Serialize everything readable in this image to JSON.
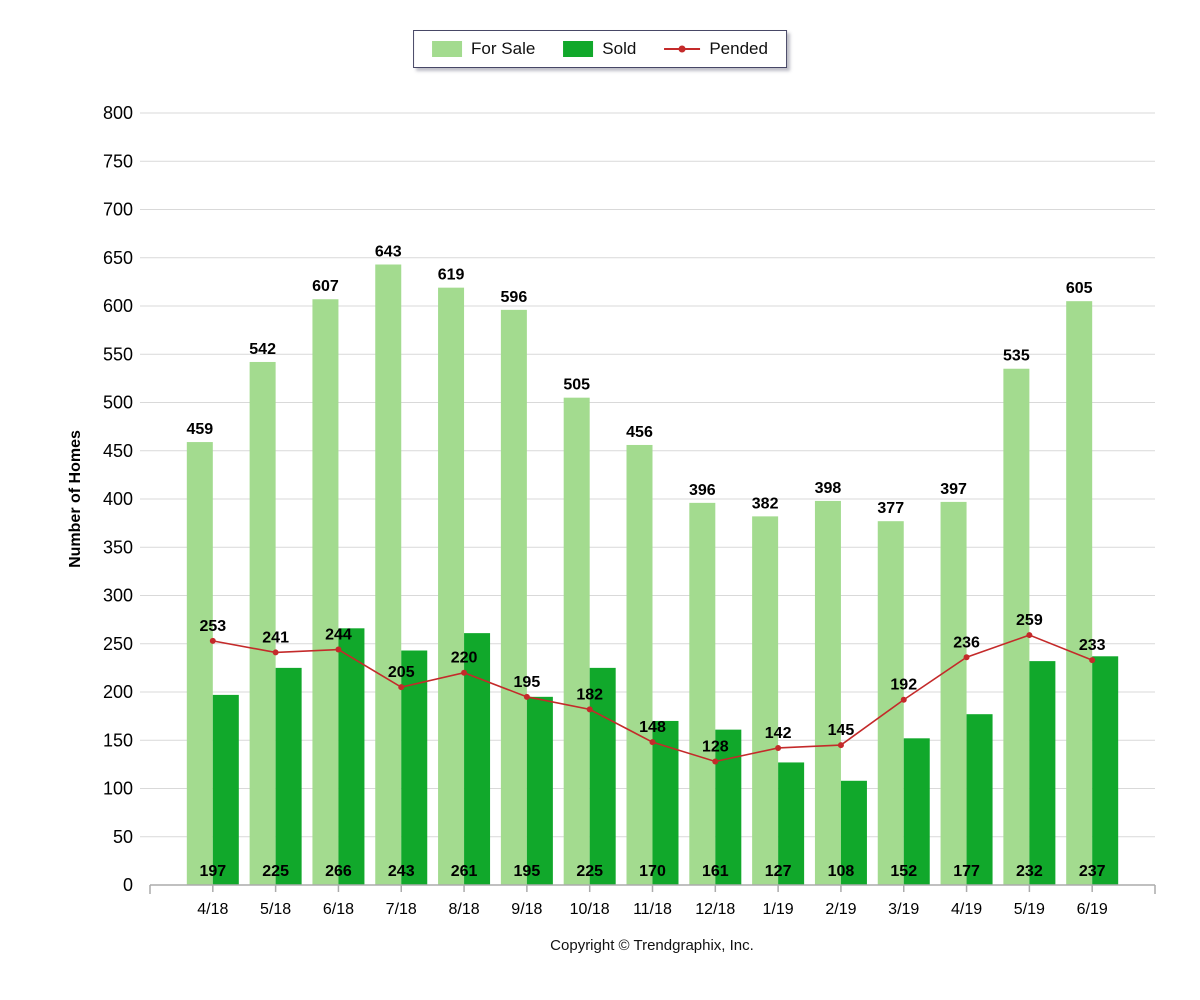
{
  "legend": {
    "items": [
      {
        "label": "For Sale",
        "color": "#A3DB8F",
        "type": "box"
      },
      {
        "label": "Sold",
        "color": "#11A82B",
        "type": "box"
      },
      {
        "label": "Pended",
        "color": "#C42A2A",
        "type": "line"
      }
    ]
  },
  "chart_data": {
    "type": "bar",
    "categories": [
      "4/18",
      "5/18",
      "6/18",
      "7/18",
      "8/18",
      "9/18",
      "10/18",
      "11/18",
      "12/18",
      "1/19",
      "2/19",
      "3/19",
      "4/19",
      "5/19",
      "6/19"
    ],
    "series": [
      {
        "name": "For Sale",
        "type": "bar",
        "color": "#A3DB8F",
        "values": [
          459,
          542,
          607,
          643,
          619,
          596,
          505,
          456,
          396,
          382,
          398,
          377,
          397,
          535,
          605
        ]
      },
      {
        "name": "Sold",
        "type": "bar",
        "color": "#11A82B",
        "values": [
          197,
          225,
          266,
          243,
          261,
          195,
          225,
          170,
          161,
          127,
          108,
          152,
          177,
          232,
          237
        ]
      },
      {
        "name": "Pended",
        "type": "line",
        "color": "#C42A2A",
        "values": [
          253,
          241,
          244,
          205,
          220,
          195,
          182,
          148,
          128,
          142,
          145,
          192,
          236,
          259,
          233
        ]
      }
    ],
    "ylabel": "Number of Homes",
    "xlabel": "",
    "ylim": [
      0,
      800
    ],
    "ytick_step": 50,
    "grid": true,
    "legend_position": "top"
  },
  "footer": {
    "copyright": "Copyright © Trendgraphix, Inc."
  },
  "colors": {
    "grid": "#D9D9D9",
    "axis": "#ABABAB",
    "text": "#000000"
  }
}
